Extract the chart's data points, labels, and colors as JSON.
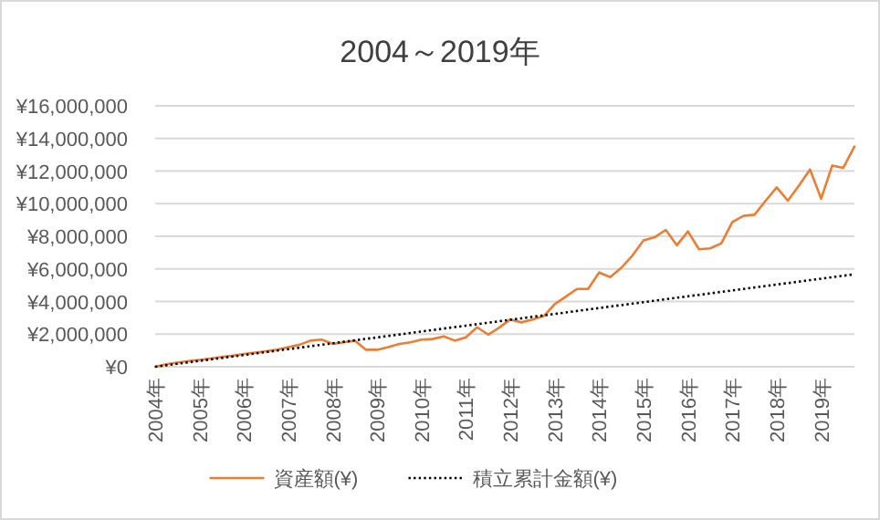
{
  "chart_data": {
    "type": "line",
    "title": "2004～2019年",
    "categories": [
      "2004年",
      null,
      null,
      null,
      "2005年",
      null,
      null,
      null,
      "2006年",
      null,
      null,
      null,
      "2007年",
      null,
      null,
      null,
      "2008年",
      null,
      null,
      null,
      "2009年",
      null,
      null,
      null,
      "2010年",
      null,
      null,
      null,
      "2011年",
      null,
      null,
      null,
      "2012年",
      null,
      null,
      null,
      "2013年",
      null,
      null,
      null,
      "2014年",
      null,
      null,
      null,
      "2015年",
      null,
      null,
      null,
      "2016年",
      null,
      null,
      null,
      "2017年",
      null,
      null,
      null,
      "2018年",
      null,
      null,
      null,
      "2019年",
      null,
      null,
      null
    ],
    "series": [
      {
        "name": "資産額(¥)",
        "color": "#ed7d31",
        "line_style": "solid",
        "values": [
          0,
          150000,
          250000,
          350000,
          420000,
          500000,
          600000,
          680000,
          780000,
          860000,
          950000,
          1050000,
          1200000,
          1350000,
          1600000,
          1660000,
          1400000,
          1500000,
          1600000,
          1040000,
          1040000,
          1200000,
          1400000,
          1500000,
          1660000,
          1700000,
          1860000,
          1600000,
          1800000,
          2420000,
          1970000,
          2400000,
          2900000,
          2720000,
          2900000,
          3100000,
          3840000,
          4300000,
          4770000,
          4770000,
          5780000,
          5500000,
          6070000,
          6820000,
          7750000,
          7940000,
          8390000,
          7450000,
          8300000,
          7200000,
          7260000,
          7560000,
          8870000,
          9250000,
          9320000,
          10180000,
          11000000,
          10180000,
          11100000,
          12100000,
          10300000,
          12340000,
          12200000,
          13500000
        ]
      },
      {
        "name": "積立累計金額(¥)",
        "color": "#000000",
        "line_style": "dotted",
        "values": [
          0,
          90000,
          180000,
          270000,
          360000,
          450000,
          540000,
          630000,
          720000,
          810000,
          900000,
          990000,
          1080000,
          1170000,
          1260000,
          1350000,
          1440000,
          1530000,
          1620000,
          1710000,
          1800000,
          1890000,
          1980000,
          2070000,
          2160000,
          2250000,
          2340000,
          2430000,
          2520000,
          2610000,
          2700000,
          2790000,
          2880000,
          2970000,
          3060000,
          3150000,
          3240000,
          3330000,
          3420000,
          3510000,
          3600000,
          3690000,
          3780000,
          3870000,
          3960000,
          4050000,
          4140000,
          4230000,
          4320000,
          4410000,
          4500000,
          4590000,
          4680000,
          4770000,
          4860000,
          4950000,
          5040000,
          5130000,
          5220000,
          5310000,
          5400000,
          5490000,
          5580000,
          5670000
        ]
      }
    ],
    "ylim": [
      0,
      16000000
    ],
    "yticks": [
      {
        "value": 0,
        "label": "¥0"
      },
      {
        "value": 2000000,
        "label": "¥2,000,000"
      },
      {
        "value": 4000000,
        "label": "¥4,000,000"
      },
      {
        "value": 6000000,
        "label": "¥6,000,000"
      },
      {
        "value": 8000000,
        "label": "¥8,000,000"
      },
      {
        "value": 10000000,
        "label": "¥10,000,000"
      },
      {
        "value": 12000000,
        "label": "¥12,000,000"
      },
      {
        "value": 14000000,
        "label": "¥14,000,000"
      },
      {
        "value": 16000000,
        "label": "¥16,000,000"
      }
    ],
    "grid": "y",
    "legend": "bottom"
  }
}
